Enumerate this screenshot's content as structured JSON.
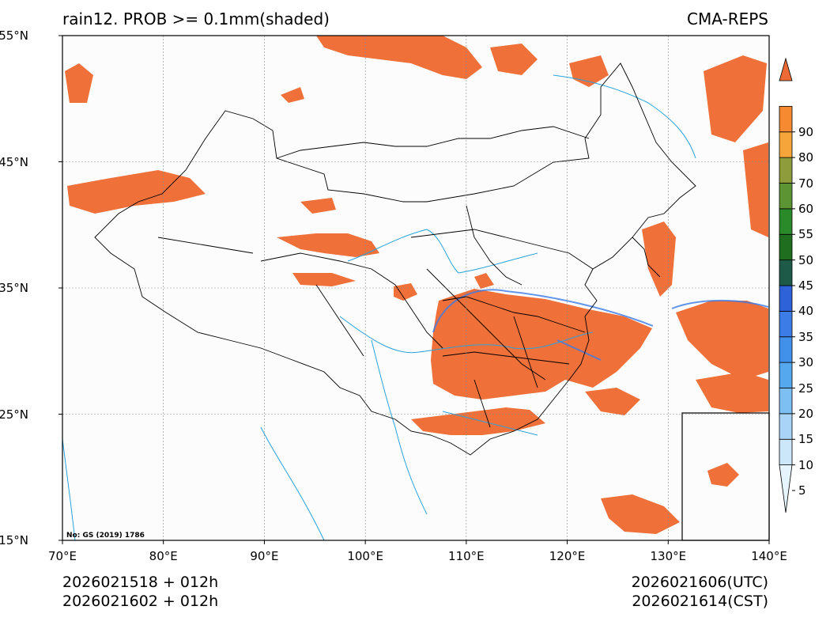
{
  "header": {
    "title_left": "rain12. PROB >= 0.1mm(shaded)",
    "title_right": "CMA-REPS"
  },
  "footer": {
    "left_line1": "2026021518  +  012h",
    "left_line2": "2026021602  +  012h",
    "right_line1": "2026021606(UTC)",
    "right_line2": "2026021614(CST)"
  },
  "map": {
    "projection": "lat-lon",
    "lon_range": [
      70,
      140
    ],
    "lat_range": [
      15,
      55
    ],
    "grid": true,
    "watermark": "No: GS (2019) 1786",
    "lat_ticks": [
      {
        "value": 55,
        "label": "55°N"
      },
      {
        "value": 45,
        "label": "45°N"
      },
      {
        "value": 35,
        "label": "35°N"
      },
      {
        "value": 25,
        "label": "25°N"
      },
      {
        "value": 15,
        "label": "15°N"
      }
    ],
    "lon_ticks": [
      {
        "value": 70,
        "label": "70°E"
      },
      {
        "value": 80,
        "label": "80°E"
      },
      {
        "value": 90,
        "label": "90°E"
      },
      {
        "value": 100,
        "label": "100°E"
      },
      {
        "value": 110,
        "label": "110°E"
      },
      {
        "value": 120,
        "label": "120°E"
      },
      {
        "value": 130,
        "label": "130°E"
      },
      {
        "value": 140,
        "label": "140°E"
      }
    ],
    "inset": "South China Sea",
    "colors": {
      "high_prob": "#f0703a",
      "border": "#000000",
      "rivers": "#29a3dc",
      "grid": "#888888"
    }
  },
  "colorbar": {
    "levels": [
      "5",
      "10",
      "15",
      "20",
      "25",
      "30",
      "35",
      "40",
      "45",
      "50",
      "55",
      "60",
      "70",
      "80",
      "90"
    ],
    "colors": [
      "#e6f4fd",
      "#cce6fa",
      "#a9d4f7",
      "#7dbff3",
      "#55a8ee",
      "#4191ea",
      "#3c7ce6",
      "#2d62d8",
      "#1e5a48",
      "#1f6e1f",
      "#2a8a2a",
      "#5c9433",
      "#8f9c3c",
      "#f5a53a",
      "#f58a30",
      "#ec6a35"
    ],
    "extend": "both"
  }
}
